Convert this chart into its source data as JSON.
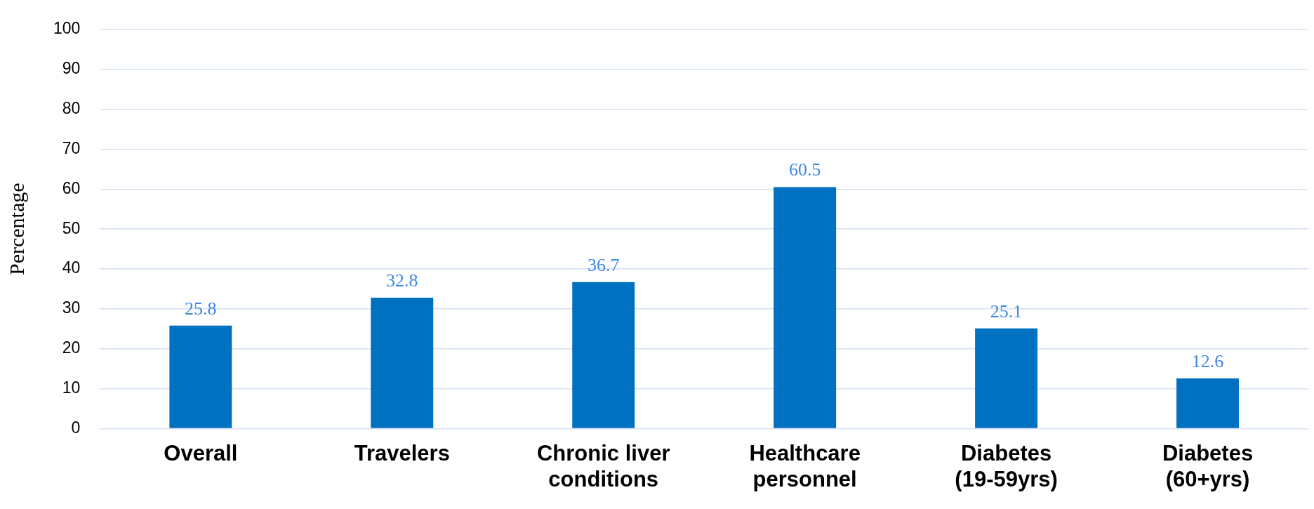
{
  "chart_data": {
    "type": "bar",
    "ylabel": "Percentage",
    "categories": [
      "Overall",
      "Travelers",
      "Chronic liver conditions",
      "Healthcare personnel",
      "Diabetes (19-59yrs)",
      "Diabetes (60+yrs)"
    ],
    "values": [
      25.8,
      32.8,
      36.7,
      60.5,
      25.1,
      12.6
    ],
    "color": "#0070c0",
    "ylim": [
      0,
      100
    ],
    "yticks": [
      0,
      10,
      20,
      30,
      40,
      50,
      60,
      70,
      80,
      90,
      100
    ],
    "grid": "y",
    "data_labels": true,
    "legend": false
  }
}
